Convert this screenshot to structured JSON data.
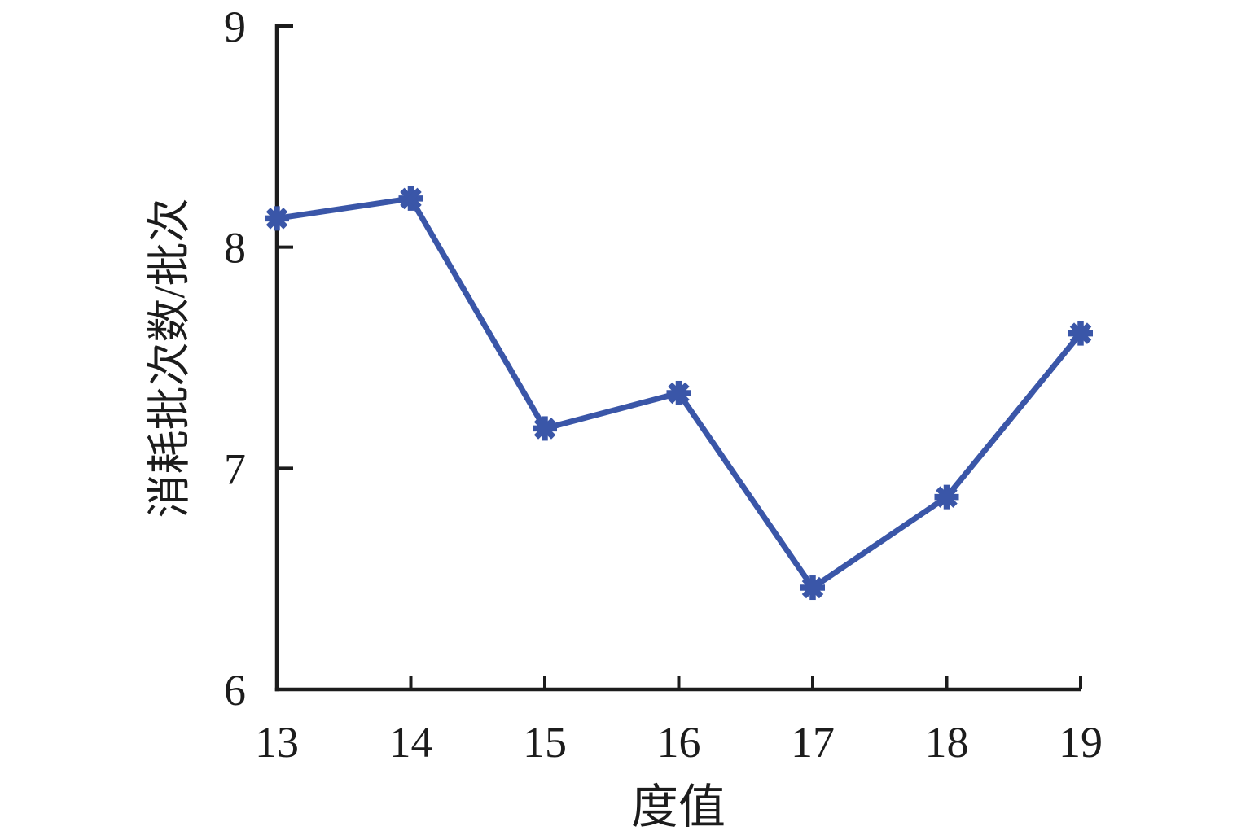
{
  "chart_data": {
    "type": "line",
    "title": "",
    "xlabel": "度值",
    "ylabel": "消耗批次数/批次",
    "x": [
      13,
      14,
      15,
      16,
      17,
      18,
      19
    ],
    "series": [
      {
        "name": "消耗批次数",
        "values": [
          8.13,
          8.22,
          7.18,
          7.34,
          6.46,
          6.87,
          7.61
        ]
      }
    ],
    "xlim": [
      13,
      19
    ],
    "ylim": [
      6,
      9
    ],
    "x_ticks": [
      13,
      14,
      15,
      16,
      17,
      18,
      19
    ],
    "y_ticks": [
      6,
      7,
      8,
      9
    ],
    "grid": false,
    "legend_position": "none",
    "marker": "asterisk-8-spoke",
    "line_color": "#3A56A8",
    "marker_color": "#3A56A8",
    "axis_color": "#1c1c1c",
    "background_color": "#ffffff"
  }
}
